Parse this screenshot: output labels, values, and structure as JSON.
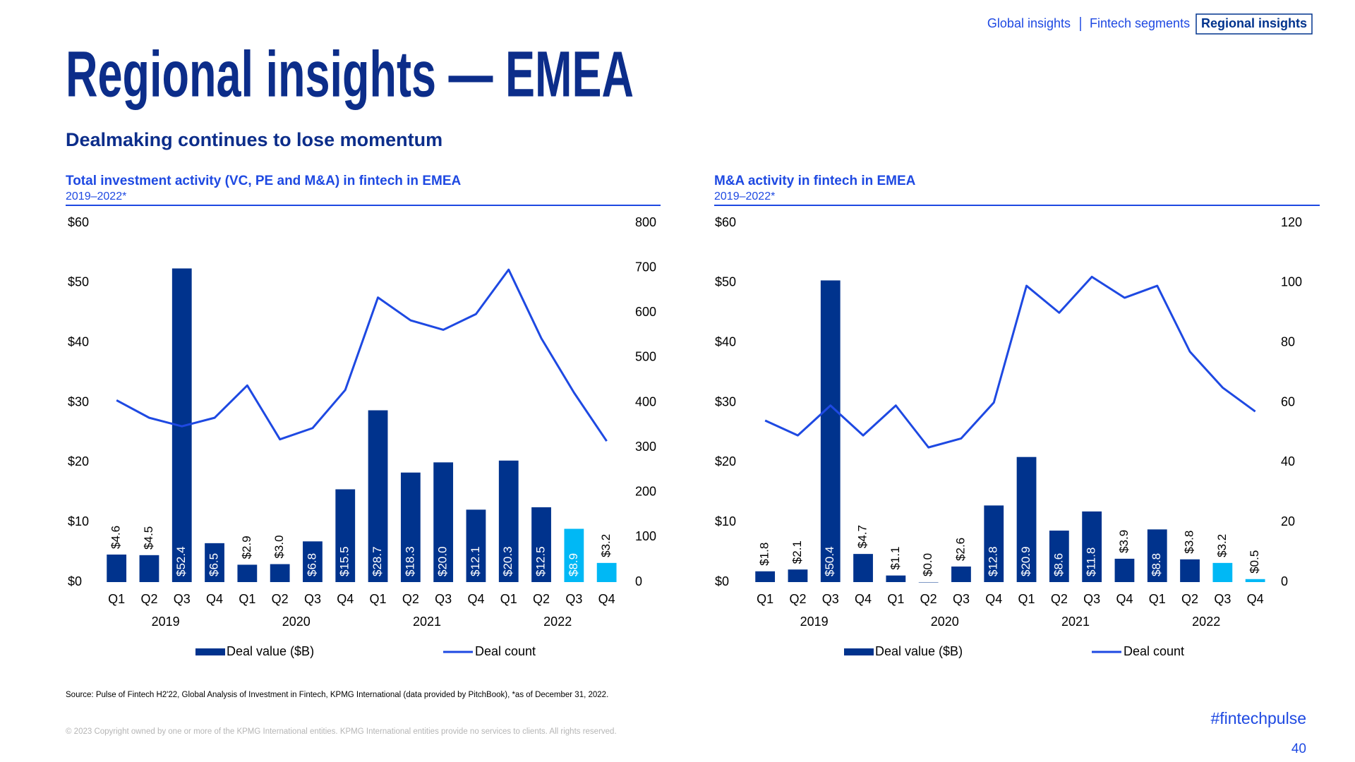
{
  "header": {
    "nav": [
      "Global insights",
      "Fintech segments",
      "Regional insights"
    ],
    "title": "Regional insights — EMEA",
    "subtitle": "Dealmaking continues to lose momentum"
  },
  "chart_data": [
    {
      "type": "combo",
      "title": "Total investment activity (VC, PE and M&A) in fintech in EMEA",
      "subtitle": "2019–2022*",
      "categories": [
        "Q1",
        "Q2",
        "Q3",
        "Q4",
        "Q1",
        "Q2",
        "Q3",
        "Q4",
        "Q1",
        "Q2",
        "Q3",
        "Q4",
        "Q1",
        "Q2",
        "Q3",
        "Q4"
      ],
      "groups": [
        "2019",
        "2020",
        "2021",
        "2022"
      ],
      "series": [
        {
          "name": "Deal value ($B)",
          "type": "bar",
          "color": "#00338d",
          "colors": [
            "#00338d",
            "#00338d",
            "#00338d",
            "#00338d",
            "#00338d",
            "#00338d",
            "#00338d",
            "#00338d",
            "#00338d",
            "#00338d",
            "#00338d",
            "#00338d",
            "#00338d",
            "#00338d",
            "#00b8f5",
            "#00b8f5"
          ],
          "values": [
            4.6,
            4.5,
            52.4,
            6.5,
            2.9,
            3.0,
            6.8,
            15.5,
            28.7,
            18.3,
            20.0,
            12.1,
            20.3,
            12.5,
            8.9,
            3.2
          ],
          "value_labels": [
            "$4.6",
            "$4.5",
            "$52.4",
            "$6.5",
            "$2.9",
            "$3.0",
            "$6.8",
            "$15.5",
            "$28.7",
            "$18.3",
            "$20.0",
            "$12.1",
            "$20.3",
            "$12.5",
            "$8.9",
            "$3.2"
          ]
        },
        {
          "name": "Deal count",
          "type": "line",
          "axis": "y2",
          "color": "#1e49e2",
          "values": [
            405,
            366,
            347,
            366,
            438,
            318,
            343,
            428,
            634,
            583,
            562,
            597,
            696,
            543,
            422,
            314
          ]
        }
      ],
      "ylim": [
        0,
        60
      ],
      "yticks": [
        {
          "value": 0,
          "label": "$0"
        },
        {
          "value": 10,
          "label": "$10"
        },
        {
          "value": 20,
          "label": "$20"
        },
        {
          "value": 30,
          "label": "$30"
        },
        {
          "value": 40,
          "label": "$40"
        },
        {
          "value": 50,
          "label": "$50"
        },
        {
          "value": 60,
          "label": "$60"
        }
      ],
      "y2lim": [
        0,
        800
      ],
      "y2ticks": [
        0,
        100,
        200,
        300,
        400,
        500,
        600,
        700,
        800
      ]
    },
    {
      "type": "combo",
      "title": "M&A activity in fintech in EMEA",
      "subtitle": "2019–2022*",
      "categories": [
        "Q1",
        "Q2",
        "Q3",
        "Q4",
        "Q1",
        "Q2",
        "Q3",
        "Q4",
        "Q1",
        "Q2",
        "Q3",
        "Q4",
        "Q1",
        "Q2",
        "Q3",
        "Q4"
      ],
      "groups": [
        "2019",
        "2020",
        "2021",
        "2022"
      ],
      "series": [
        {
          "name": "Deal value ($B)",
          "type": "bar",
          "color": "#00338d",
          "colors": [
            "#00338d",
            "#00338d",
            "#00338d",
            "#00338d",
            "#00338d",
            "#00338d",
            "#00338d",
            "#00338d",
            "#00338d",
            "#00338d",
            "#00338d",
            "#00338d",
            "#00338d",
            "#00338d",
            "#00b8f5",
            "#00b8f5"
          ],
          "values": [
            1.8,
            2.1,
            50.4,
            4.7,
            1.1,
            0.0,
            2.6,
            12.8,
            20.9,
            8.6,
            11.8,
            3.9,
            8.8,
            3.8,
            3.2,
            0.5
          ],
          "value_labels": [
            "$1.8",
            "$2.1",
            "$50.4",
            "$4.7",
            "$1.1",
            "$0.0",
            "$2.6",
            "$12.8",
            "$20.9",
            "$8.6",
            "$11.8",
            "$3.9",
            "$8.8",
            "$3.8",
            "$3.2",
            "$0.5"
          ]
        },
        {
          "name": "Deal count",
          "type": "line",
          "axis": "y2",
          "color": "#1e49e2",
          "values": [
            54,
            49,
            59,
            49,
            59,
            45,
            48,
            60,
            99,
            90,
            102,
            95,
            99,
            77,
            65,
            57
          ]
        }
      ],
      "ylim": [
        0,
        60
      ],
      "yticks": [
        {
          "value": 0,
          "label": "$0"
        },
        {
          "value": 10,
          "label": "$10"
        },
        {
          "value": 20,
          "label": "$20"
        },
        {
          "value": 30,
          "label": "$30"
        },
        {
          "value": 40,
          "label": "$40"
        },
        {
          "value": 50,
          "label": "$50"
        },
        {
          "value": 60,
          "label": "$60"
        }
      ],
      "y2lim": [
        0,
        120
      ],
      "y2ticks": [
        0,
        20,
        40,
        60,
        80,
        100,
        120
      ]
    }
  ],
  "footer": {
    "source": "Source: Pulse of Fintech H2'22, Global Analysis of Investment in Fintech, KPMG International (data provided by PitchBook), *as of December 31, 2022.",
    "copyright": "© 2023 Copyright owned by one or more of the KPMG International entities. KPMG International entities provide no services to clients. All rights reserved.",
    "hashtag": "#fintechpulse",
    "page_number": "40"
  }
}
